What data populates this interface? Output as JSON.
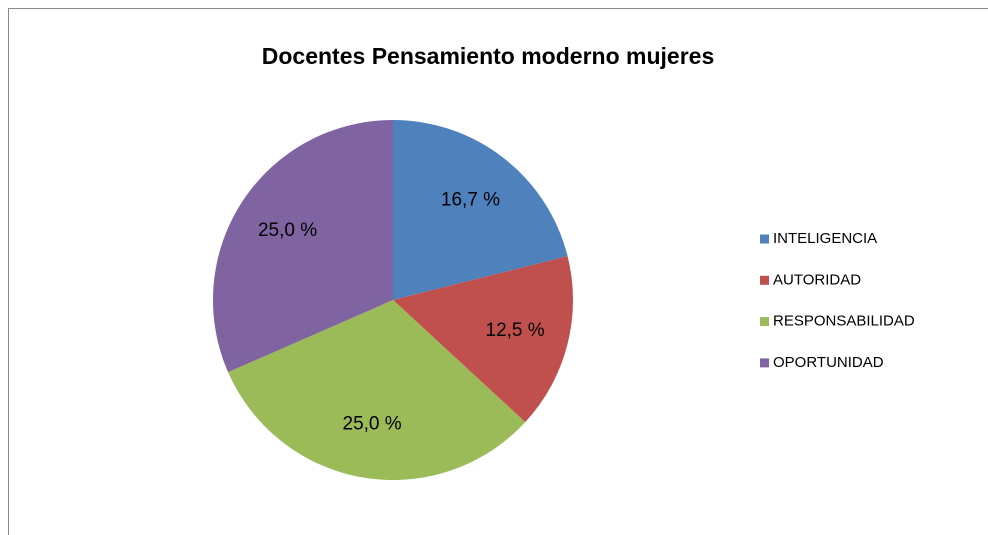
{
  "chart_data": {
    "type": "pie",
    "title": "Docentes Pensamiento moderno mujeres",
    "categories": [
      "INTELIGENCIA",
      "AUTORIDAD",
      "RESPONSABILIDAD",
      "OPORTUNIDAD"
    ],
    "values": [
      16.7,
      12.5,
      25.0,
      25.0
    ],
    "value_labels": [
      "16,7 %",
      "12,5 %",
      "25,0 %",
      "25,0 %"
    ],
    "colors": [
      "#4f81bd",
      "#c0504d",
      "#9bbb59",
      "#8064a2"
    ],
    "legend": "right"
  }
}
